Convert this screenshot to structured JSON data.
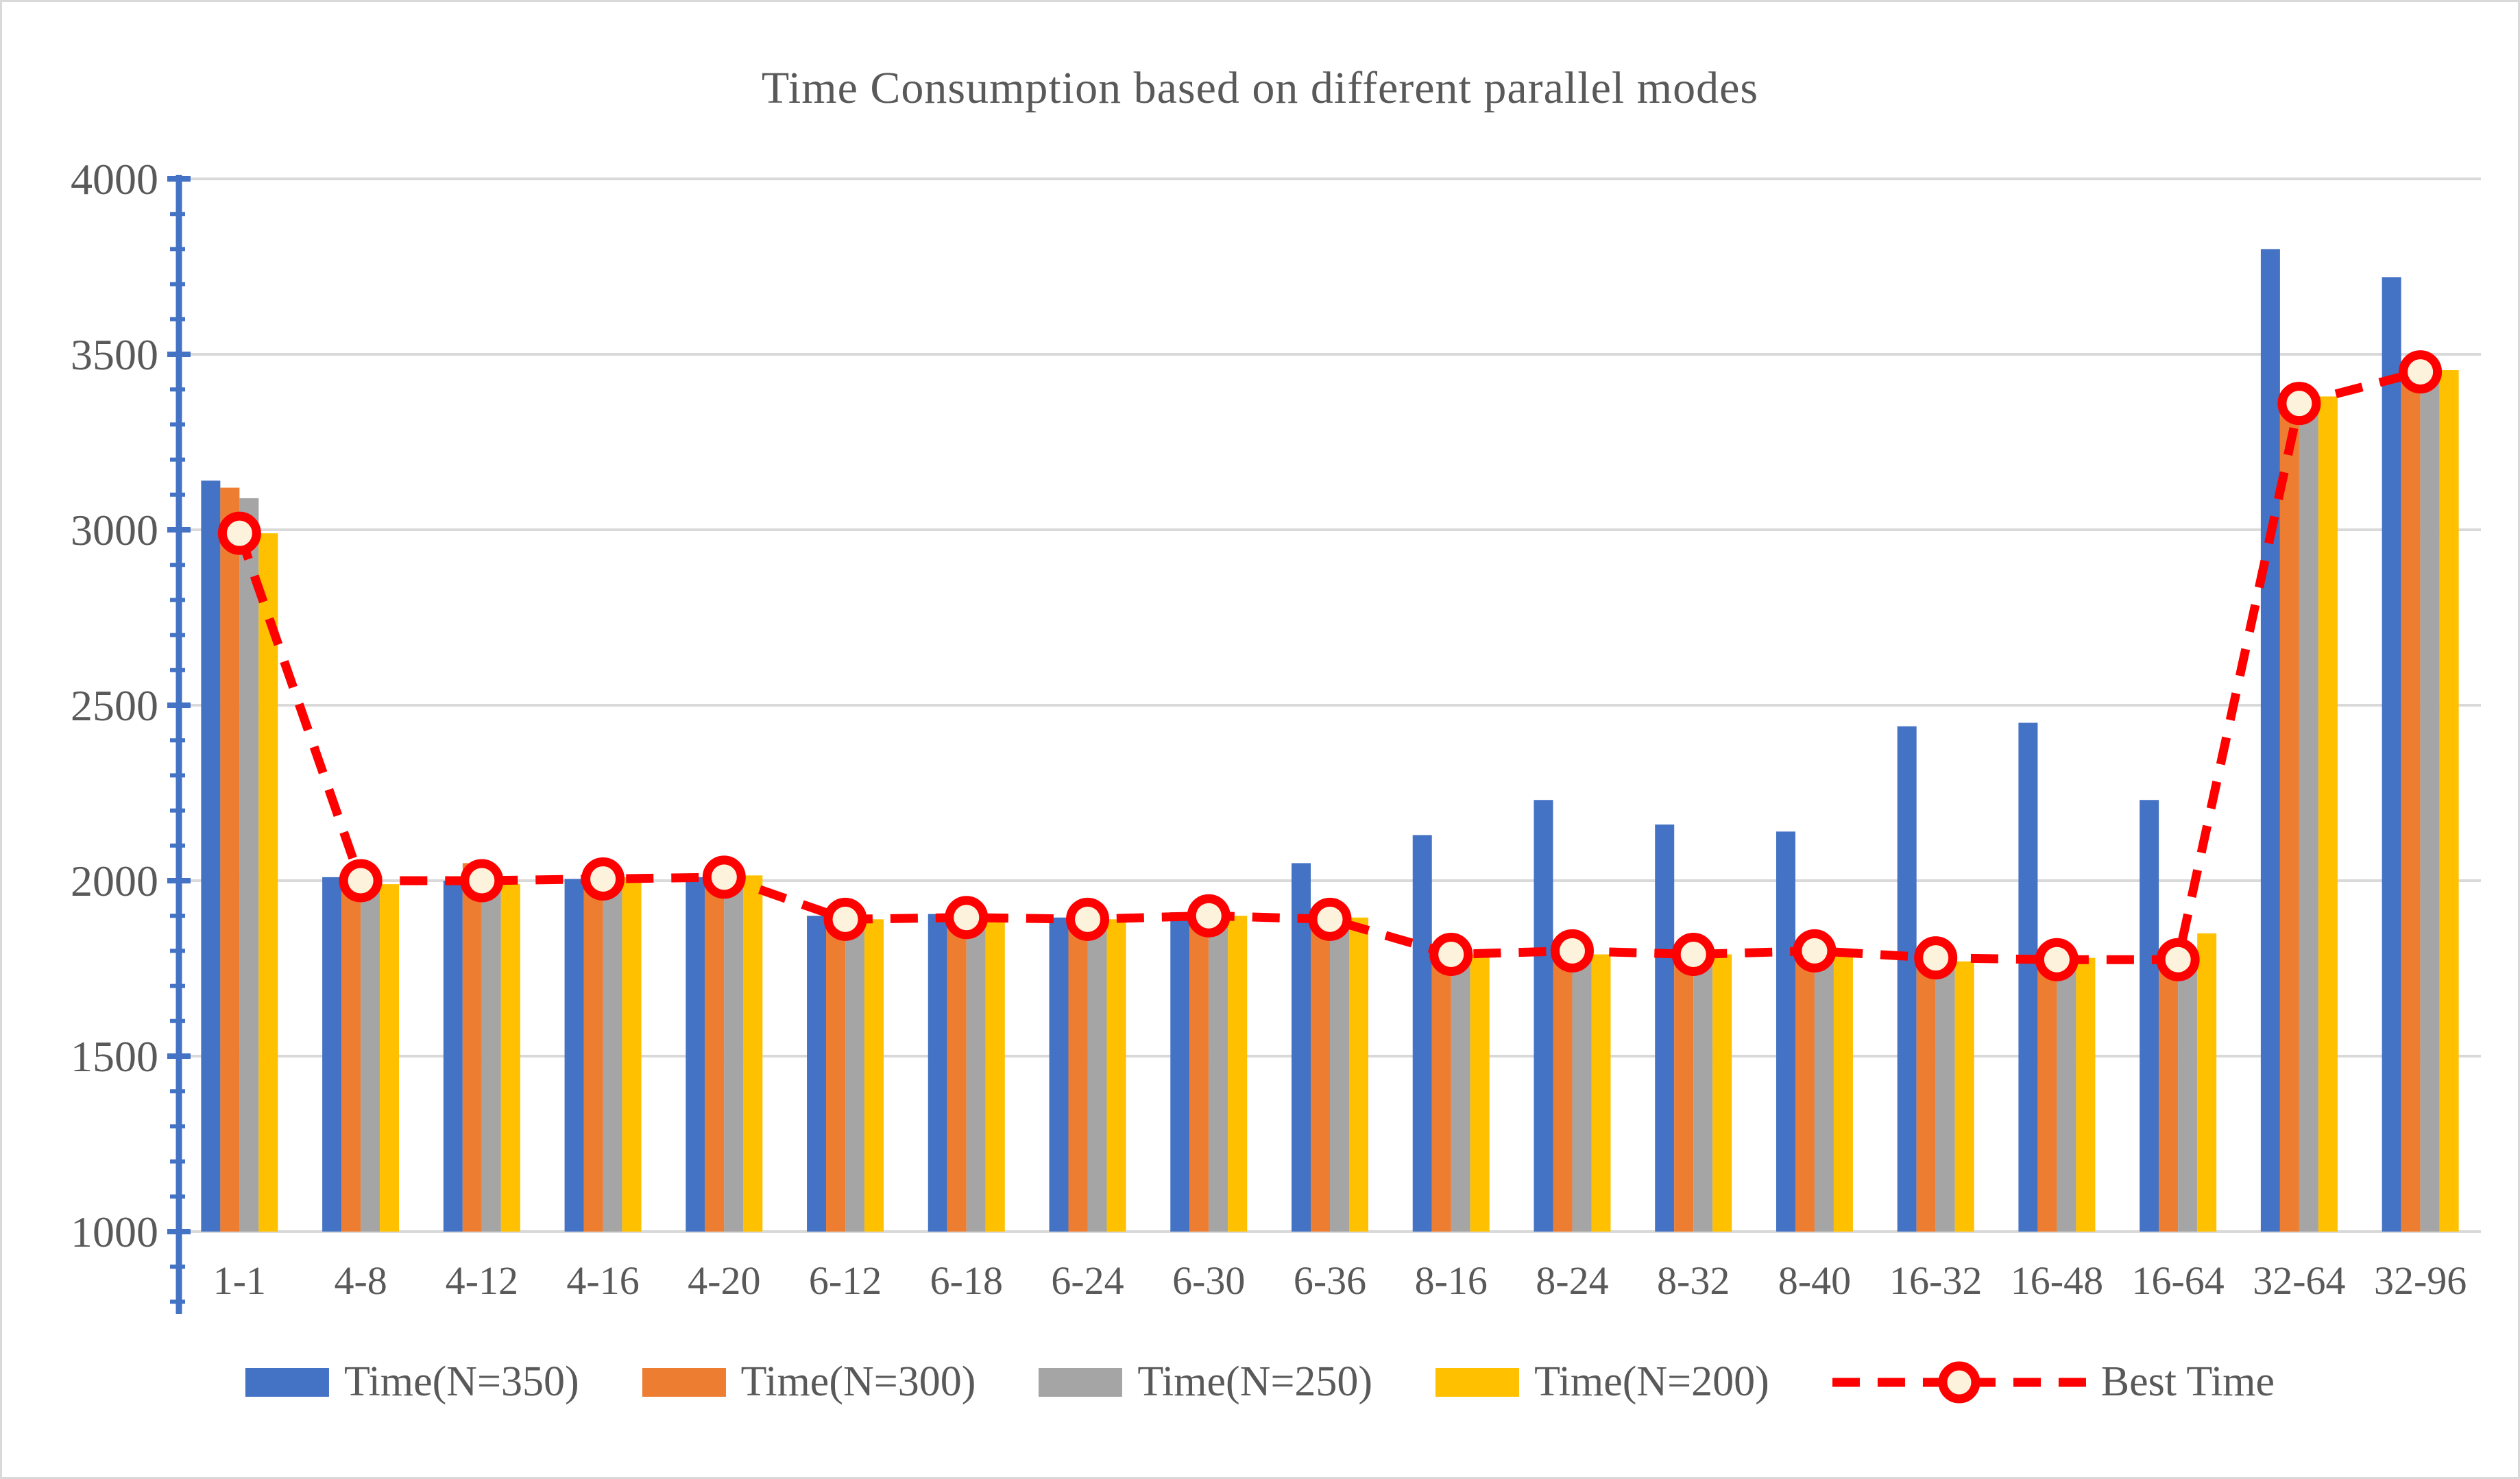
{
  "title": "Time Consumption based on different parallel modes",
  "chart_data": {
    "type": "bar",
    "title": "Time Consumption based on different parallel modes",
    "categories": [
      "1-1",
      "4-8",
      "4-12",
      "4-16",
      "4-20",
      "6-12",
      "6-18",
      "6-24",
      "6-30",
      "6-36",
      "8-16",
      "8-24",
      "8-32",
      "8-40",
      "16-32",
      "16-48",
      "16-64",
      "32-64",
      "32-96"
    ],
    "series": [
      {
        "name": "Time(N=350)",
        "color": "#4472C4",
        "values": [
          3140,
          2010,
          2000,
          2005,
          2010,
          1900,
          1905,
          1895,
          1910,
          2050,
          2130,
          2230,
          2160,
          2140,
          2440,
          2450,
          2230,
          3800,
          3720
        ]
      },
      {
        "name": "Time(N=300)",
        "color": "#ED7D31",
        "values": [
          3120,
          2005,
          2050,
          1990,
          2020,
          1890,
          1895,
          1900,
          1905,
          1890,
          1790,
          1775,
          1770,
          1780,
          1780,
          1795,
          1790,
          3370,
          3430
        ]
      },
      {
        "name": "Time(N=250)",
        "color": "#A5A5A5",
        "values": [
          3090,
          2000,
          2005,
          2000,
          2000,
          1885,
          1890,
          1880,
          1900,
          1900,
          1780,
          1785,
          1795,
          1785,
          1790,
          1775,
          1780,
          3360,
          3445
        ]
      },
      {
        "name": "Time(N=200)",
        "color": "#FFC000",
        "values": [
          2990,
          1990,
          1990,
          2010,
          2015,
          1890,
          1900,
          1890,
          1900,
          1895,
          1790,
          1790,
          1790,
          1795,
          1770,
          1780,
          1850,
          3380,
          3455
        ]
      }
    ],
    "line_series": {
      "name": "Best Time",
      "color": "#FF0000",
      "marker_fill": "#FDF3DC",
      "dash": [
        40,
        26
      ],
      "values": [
        2990,
        2000,
        2000,
        2005,
        2010,
        1890,
        1895,
        1890,
        1900,
        1890,
        1790,
        1800,
        1790,
        1800,
        1780,
        1775,
        1775,
        3360,
        3450
      ]
    },
    "xlabel": "",
    "ylabel": "",
    "ylim": [
      1000,
      4000
    ],
    "yticks": [
      1000,
      1500,
      2000,
      2500,
      3000,
      3500,
      4000
    ],
    "minor_tick_step": 100,
    "grid": true,
    "legend_position": "bottom",
    "axis_color": "#4472C4",
    "grid_color": "#D9D9D9",
    "text_color": "#595959"
  }
}
